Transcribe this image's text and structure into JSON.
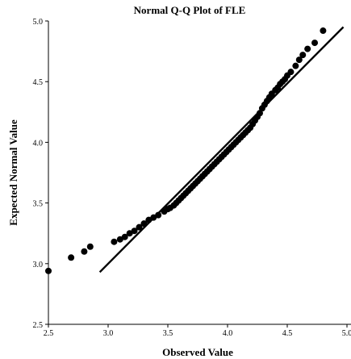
{
  "chart_data": {
    "type": "scatter",
    "title": "Normal Q-Q Plot of FLE",
    "xlabel": "Observed Value",
    "ylabel": "Expected Normal Value",
    "xlim": [
      2.5,
      5.0
    ],
    "ylim": [
      2.5,
      5.0
    ],
    "x_ticks": [
      "2.5",
      "3.0",
      "3.5",
      "4.0",
      "4.5",
      "5.0"
    ],
    "y_ticks": [
      "2.5",
      "3.0",
      "3.5",
      "4.0",
      "4.5",
      "5.0"
    ],
    "grid": false,
    "reference_line": {
      "x": [
        2.93,
        4.97
      ],
      "y": [
        2.93,
        4.95
      ]
    },
    "points": [
      [
        2.5,
        2.94
      ],
      [
        2.69,
        3.05
      ],
      [
        2.8,
        3.1
      ],
      [
        2.85,
        3.14
      ],
      [
        3.05,
        3.18
      ],
      [
        3.1,
        3.2
      ],
      [
        3.14,
        3.22
      ],
      [
        3.18,
        3.25
      ],
      [
        3.22,
        3.27
      ],
      [
        3.26,
        3.3
      ],
      [
        3.3,
        3.33
      ],
      [
        3.34,
        3.36
      ],
      [
        3.38,
        3.38
      ],
      [
        3.42,
        3.4
      ],
      [
        3.47,
        3.43
      ],
      [
        3.5,
        3.45
      ],
      [
        3.52,
        3.46
      ],
      [
        3.55,
        3.48
      ],
      [
        3.57,
        3.5
      ],
      [
        3.59,
        3.52
      ],
      [
        3.61,
        3.54
      ],
      [
        3.63,
        3.56
      ],
      [
        3.65,
        3.58
      ],
      [
        3.67,
        3.6
      ],
      [
        3.69,
        3.62
      ],
      [
        3.71,
        3.64
      ],
      [
        3.73,
        3.66
      ],
      [
        3.75,
        3.68
      ],
      [
        3.77,
        3.7
      ],
      [
        3.79,
        3.72
      ],
      [
        3.81,
        3.74
      ],
      [
        3.83,
        3.76
      ],
      [
        3.85,
        3.78
      ],
      [
        3.87,
        3.8
      ],
      [
        3.89,
        3.82
      ],
      [
        3.91,
        3.84
      ],
      [
        3.93,
        3.86
      ],
      [
        3.95,
        3.88
      ],
      [
        3.97,
        3.9
      ],
      [
        3.99,
        3.92
      ],
      [
        4.01,
        3.94
      ],
      [
        4.03,
        3.96
      ],
      [
        4.05,
        3.98
      ],
      [
        4.07,
        4.0
      ],
      [
        4.09,
        4.02
      ],
      [
        4.11,
        4.04
      ],
      [
        4.13,
        4.06
      ],
      [
        4.15,
        4.08
      ],
      [
        4.17,
        4.1
      ],
      [
        4.19,
        4.12
      ],
      [
        4.21,
        4.15
      ],
      [
        4.23,
        4.18
      ],
      [
        4.25,
        4.21
      ],
      [
        4.27,
        4.24
      ],
      [
        4.29,
        4.28
      ],
      [
        4.31,
        4.31
      ],
      [
        4.33,
        4.34
      ],
      [
        4.35,
        4.37
      ],
      [
        4.37,
        4.4
      ],
      [
        4.4,
        4.43
      ],
      [
        4.42,
        4.45
      ],
      [
        4.44,
        4.48
      ],
      [
        4.46,
        4.5
      ],
      [
        4.48,
        4.52
      ],
      [
        4.5,
        4.55
      ],
      [
        4.53,
        4.58
      ],
      [
        4.57,
        4.63
      ],
      [
        4.6,
        4.68
      ],
      [
        4.63,
        4.72
      ],
      [
        4.67,
        4.77
      ],
      [
        4.73,
        4.82
      ],
      [
        4.8,
        4.92
      ]
    ],
    "point_color": "#000000",
    "line_color": "#000000"
  }
}
